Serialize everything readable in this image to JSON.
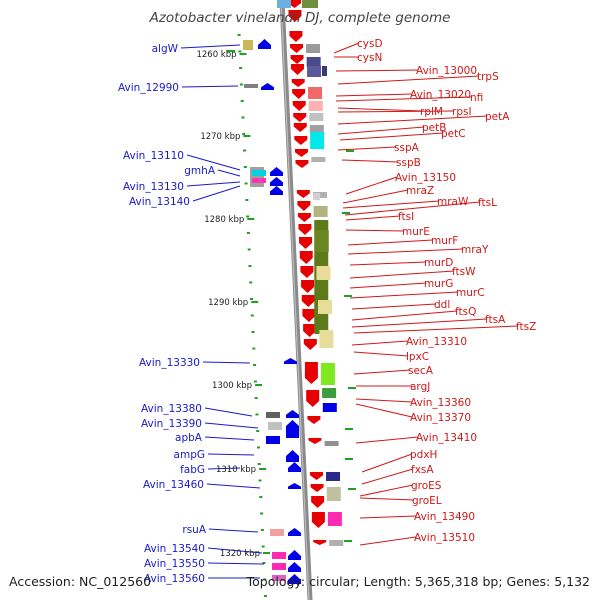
{
  "header": {
    "title": "Azotobacter vinelandii DJ, complete genome"
  },
  "footer": {
    "accession": "Accession: NC_012560",
    "topology": "Topology: circular; Length: 5,365,318 bp; Genes: 5,132"
  },
  "colors": {
    "forward_strand": "#e60000",
    "reverse_strand": "#0000e6",
    "left_labels": "#1a1acc",
    "right_labels": "#d01818",
    "genome_line": "#888888"
  },
  "ruler": [
    {
      "label": "1260 kbp"
    },
    {
      "label": "1270 kbp"
    },
    {
      "label": "1280 kbp"
    },
    {
      "label": "1290 kbp"
    },
    {
      "label": "1300 kbp"
    },
    {
      "label": "1310 kbp"
    },
    {
      "label": "1320 kbp"
    }
  ],
  "left_genes": [
    {
      "label": "algW"
    },
    {
      "label": "Avin_12990"
    },
    {
      "label": "Avin_13110"
    },
    {
      "label": "gmhA"
    },
    {
      "label": "Avin_13130"
    },
    {
      "label": "Avin_13140"
    },
    {
      "label": "Avin_13330"
    },
    {
      "label": "Avin_13380"
    },
    {
      "label": "Avin_13390"
    },
    {
      "label": "apbA"
    },
    {
      "label": "ampG"
    },
    {
      "label": "fabG"
    },
    {
      "label": "Avin_13460"
    },
    {
      "label": "rsuA"
    },
    {
      "label": "Avin_13540"
    },
    {
      "label": "Avin_13550"
    },
    {
      "label": "Avin_13560"
    }
  ],
  "right_genes": [
    {
      "label": "cysD"
    },
    {
      "label": "cysN"
    },
    {
      "label": "Avin_13000"
    },
    {
      "label": "trpS"
    },
    {
      "label": "Avin_13020"
    },
    {
      "label": "nfi"
    },
    {
      "label": "rplM"
    },
    {
      "label": "rpsI"
    },
    {
      "label": "petA"
    },
    {
      "label": "petB"
    },
    {
      "label": "petC"
    },
    {
      "label": "sspA"
    },
    {
      "label": "sspB"
    },
    {
      "label": "Avin_13150"
    },
    {
      "label": "mraZ"
    },
    {
      "label": "mraW"
    },
    {
      "label": "ftsL"
    },
    {
      "label": "ftsI"
    },
    {
      "label": "murE"
    },
    {
      "label": "murF"
    },
    {
      "label": "mraY"
    },
    {
      "label": "murD"
    },
    {
      "label": "ftsW"
    },
    {
      "label": "murG"
    },
    {
      "label": "murC"
    },
    {
      "label": "ddl"
    },
    {
      "label": "ftsQ"
    },
    {
      "label": "ftsA"
    },
    {
      "label": "ftsZ"
    },
    {
      "label": "Avin_13310"
    },
    {
      "label": "lpxC"
    },
    {
      "label": "secA"
    },
    {
      "label": "argJ"
    },
    {
      "label": "Avin_13360"
    },
    {
      "label": "Avin_13370"
    },
    {
      "label": "Avin_13410"
    },
    {
      "label": "pdxH"
    },
    {
      "label": "fxsA"
    },
    {
      "label": "groES"
    },
    {
      "label": "groEL"
    },
    {
      "label": "Avin_13490"
    },
    {
      "label": "Avin_13510"
    }
  ]
}
